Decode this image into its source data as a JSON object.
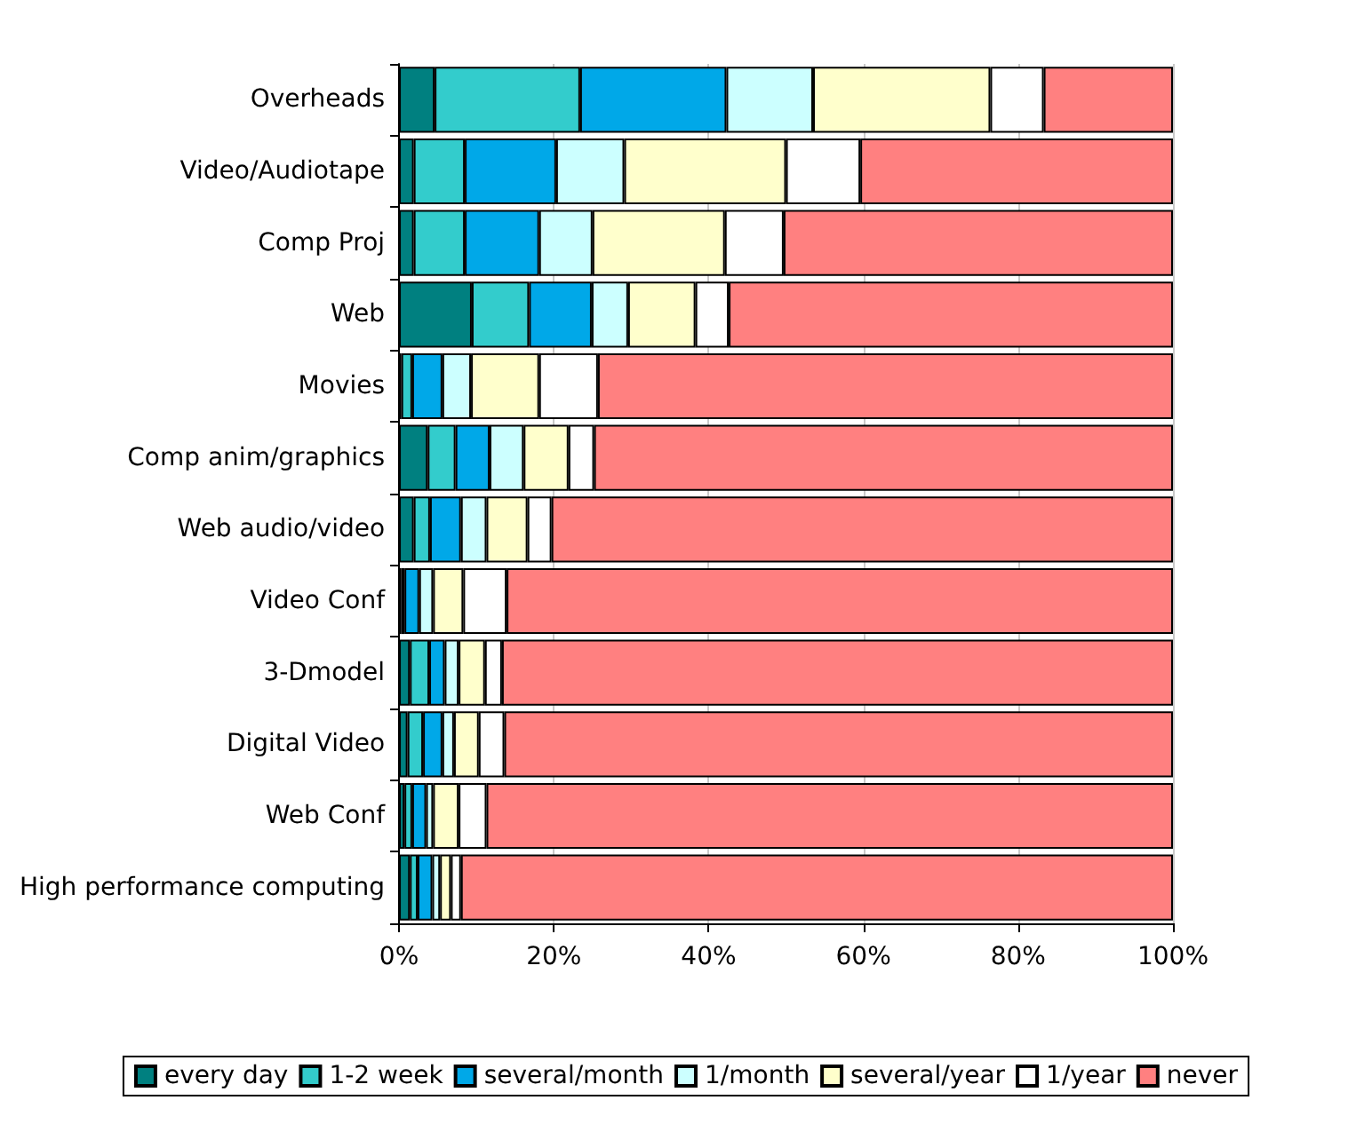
{
  "chart_data": {
    "type": "bar",
    "orientation": "horizontal",
    "stacked": true,
    "categories": [
      "Overheads",
      "Video/Audiotape",
      "Comp Proj",
      "Web",
      "Movies",
      "Comp anim/graphics",
      "Web audio/video",
      "Video Conf",
      "3-Dmodel",
      "Digital Video",
      "Web Conf",
      "High performance computing"
    ],
    "series": [
      {
        "name": "every day",
        "color": "#008080",
        "values": [
          4.6,
          1.9,
          1.9,
          9.4,
          0.3,
          3.7,
          1.9,
          0.3,
          1.4,
          1.1,
          0.7,
          1.4
        ]
      },
      {
        "name": "1-2 week",
        "color": "#33cccc",
        "values": [
          18.8,
          6.6,
          6.6,
          7.4,
          1.4,
          3.6,
          2.1,
          0.4,
          2.5,
          2.0,
          1.0,
          1.0
        ]
      },
      {
        "name": "several/month",
        "color": "#00a8e8",
        "values": [
          18.9,
          11.8,
          9.6,
          8.1,
          3.9,
          4.4,
          4.0,
          1.9,
          2.0,
          2.5,
          1.8,
          1.9
        ]
      },
      {
        "name": "1/month",
        "color": "#ccffff",
        "values": [
          11.2,
          8.8,
          6.9,
          4.7,
          3.7,
          4.4,
          3.3,
          1.8,
          1.8,
          1.5,
          0.9,
          1.0
        ]
      },
      {
        "name": "several/year",
        "color": "#ffffcc",
        "values": [
          22.9,
          20.9,
          17.1,
          8.7,
          8.8,
          5.8,
          5.3,
          3.9,
          3.4,
          3.2,
          3.3,
          1.4
        ]
      },
      {
        "name": "1/year",
        "color": "#ffffff",
        "values": [
          6.9,
          9.6,
          7.6,
          4.3,
          7.6,
          3.3,
          3.1,
          5.6,
          2.2,
          3.3,
          3.6,
          1.3
        ]
      },
      {
        "name": "never",
        "color": "#ff8080",
        "values": [
          16.7,
          40.4,
          50.3,
          57.4,
          74.3,
          74.8,
          80.3,
          86.1,
          86.7,
          86.4,
          88.7,
          92.0
        ]
      }
    ],
    "xlim": [
      0,
      100
    ],
    "xticks": [
      {
        "value": 0,
        "label": "0%"
      },
      {
        "value": 20,
        "label": "20%"
      },
      {
        "value": 40,
        "label": "40%"
      },
      {
        "value": 60,
        "label": "60%"
      },
      {
        "value": 80,
        "label": "80%"
      },
      {
        "value": 100,
        "label": "100%"
      }
    ],
    "grid": "x",
    "legend": "bottom"
  }
}
